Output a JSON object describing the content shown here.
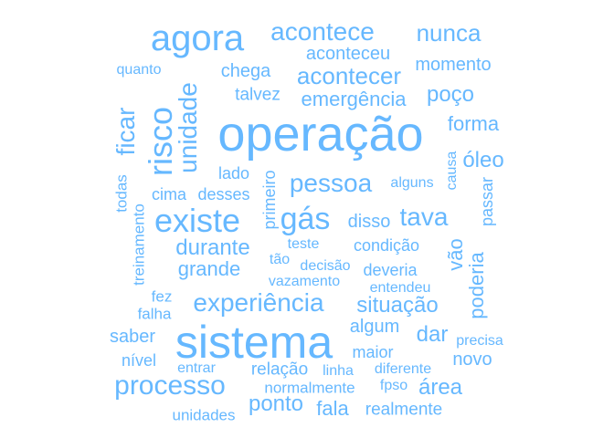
{
  "color": "#66b8ff",
  "words": [
    {
      "text": "operação"
    },
    {
      "text": "sistema"
    },
    {
      "text": "agora"
    },
    {
      "text": "existe"
    },
    {
      "text": "risco"
    },
    {
      "text": "processo"
    },
    {
      "text": "gás"
    },
    {
      "text": "experiência"
    },
    {
      "text": "acontece"
    },
    {
      "text": "pessoa"
    },
    {
      "text": "tava"
    },
    {
      "text": "unidade"
    },
    {
      "text": "ficar"
    },
    {
      "text": "nunca"
    },
    {
      "text": "acontecer"
    },
    {
      "text": "durante"
    },
    {
      "text": "situação"
    },
    {
      "text": "grande"
    },
    {
      "text": "ponto"
    },
    {
      "text": "poço"
    },
    {
      "text": "forma"
    },
    {
      "text": "óleo"
    },
    {
      "text": "emergência"
    },
    {
      "text": "área"
    },
    {
      "text": "dar"
    },
    {
      "text": "aconteceu"
    },
    {
      "text": "momento"
    },
    {
      "text": "chega"
    },
    {
      "text": "talvez"
    },
    {
      "text": "quanto"
    },
    {
      "text": "vão"
    },
    {
      "text": "poderia"
    },
    {
      "text": "passar"
    },
    {
      "text": "causa"
    },
    {
      "text": "primeiro"
    },
    {
      "text": "desses"
    },
    {
      "text": "lado"
    },
    {
      "text": "cima"
    },
    {
      "text": "alguns"
    },
    {
      "text": "disso"
    },
    {
      "text": "condição"
    },
    {
      "text": "deveria"
    },
    {
      "text": "decisão"
    },
    {
      "text": "teste"
    },
    {
      "text": "tão"
    },
    {
      "text": "vazamento"
    },
    {
      "text": "entendeu"
    },
    {
      "text": "todas"
    },
    {
      "text": "treinamento"
    },
    {
      "text": "fez"
    },
    {
      "text": "falha"
    },
    {
      "text": "saber"
    },
    {
      "text": "nível"
    },
    {
      "text": "algum"
    },
    {
      "text": "maior"
    },
    {
      "text": "novo"
    },
    {
      "text": "precisa"
    },
    {
      "text": "relação"
    },
    {
      "text": "linha"
    },
    {
      "text": "diferente"
    },
    {
      "text": "entrar"
    },
    {
      "text": "normalmente"
    },
    {
      "text": "fpso"
    },
    {
      "text": "fala"
    },
    {
      "text": "realmente"
    },
    {
      "text": "unidades"
    }
  ]
}
